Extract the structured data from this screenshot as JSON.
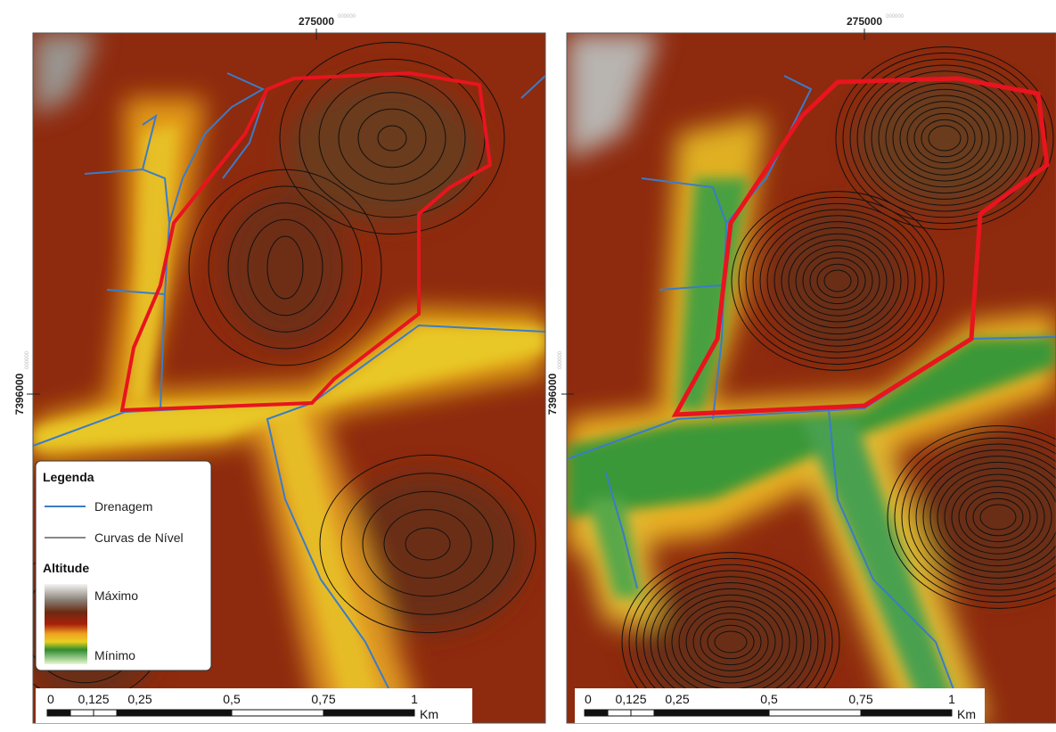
{
  "maps": [
    {
      "x_coord": "275000",
      "x_coord_sup": "000000",
      "y_coord": "7396000",
      "y_coord_sup": "000000",
      "scale_bar": {
        "labels": [
          "0",
          "0,125",
          "0,25",
          "0,5",
          "0,75",
          "1"
        ],
        "unit": "Km"
      }
    },
    {
      "x_coord": "275000",
      "x_coord_sup": "000000",
      "y_coord": "7396000",
      "y_coord_sup": "000000",
      "scale_bar": {
        "labels": [
          "0",
          "0,125",
          "0,25",
          "0,5",
          "0,75",
          "1"
        ],
        "unit": "Km"
      }
    }
  ],
  "legend": {
    "title": "Legenda",
    "drainage": "Drenagem",
    "contours": "Curvas de Nível",
    "altitude_title": "Altitude",
    "max": "Máximo",
    "min": "Mínimo"
  }
}
